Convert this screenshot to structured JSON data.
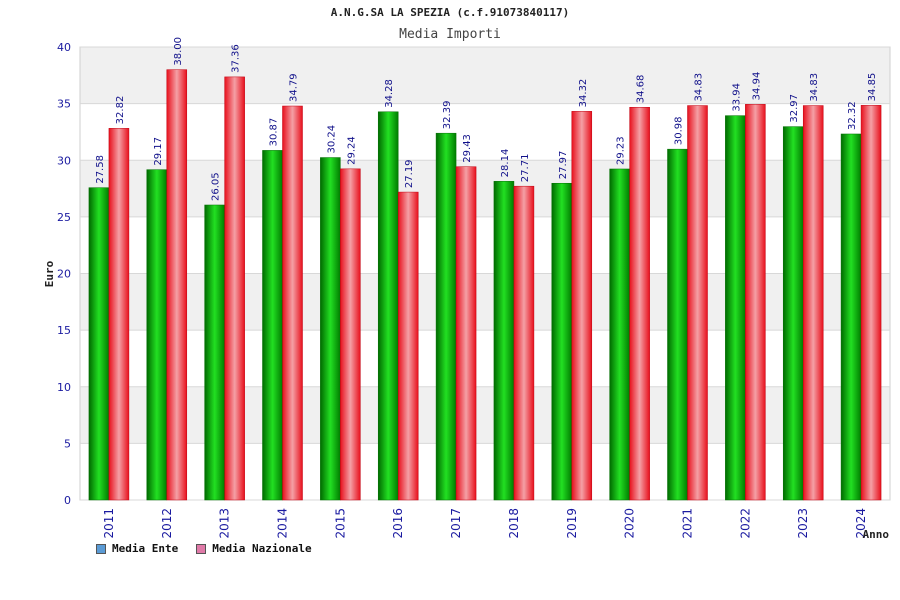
{
  "chart_data": {
    "type": "bar",
    "title": "A.N.G.SA LA SPEZIA (c.f.91073840117)",
    "subtitle": "Media Importi",
    "xlabel": "Anno",
    "ylabel": "Euro",
    "ylim": [
      0,
      40
    ],
    "yticks": [
      0,
      5,
      10,
      15,
      20,
      25,
      30,
      35,
      40
    ],
    "grid": true,
    "legend_position": "bottom-left",
    "categories": [
      "2011",
      "2012",
      "2013",
      "2014",
      "2015",
      "2016",
      "2017",
      "2018",
      "2019",
      "2020",
      "2021",
      "2022",
      "2023",
      "2024"
    ],
    "series": [
      {
        "name": "Media Ente",
        "values": [
          27.58,
          29.17,
          26.05,
          30.87,
          30.24,
          34.28,
          32.39,
          28.14,
          27.97,
          29.23,
          30.98,
          33.94,
          32.97,
          32.32
        ],
        "labels": [
          "27.58",
          "29.17",
          "26.05",
          "30.87",
          "30.24",
          "34.28",
          "32.39",
          "28.14",
          "27.97",
          "29.23",
          "30.98",
          "33.94",
          "32.97",
          "32.32"
        ],
        "color": "#00b800",
        "legend_color": "#5b9bd5"
      },
      {
        "name": "Media Nazionale",
        "values": [
          32.82,
          38.0,
          37.36,
          34.79,
          29.24,
          27.19,
          29.43,
          27.71,
          34.32,
          34.68,
          34.83,
          34.94,
          34.83,
          34.85
        ],
        "labels": [
          "32.82",
          "38.00",
          "37.36",
          "34.79",
          "29.24",
          "27.19",
          "29.43",
          "27.71",
          "34.32",
          "34.68",
          "34.83",
          "34.94",
          "34.83",
          "34.85"
        ],
        "color": "#e8101c",
        "legend_color": "#e07aa8"
      }
    ]
  }
}
